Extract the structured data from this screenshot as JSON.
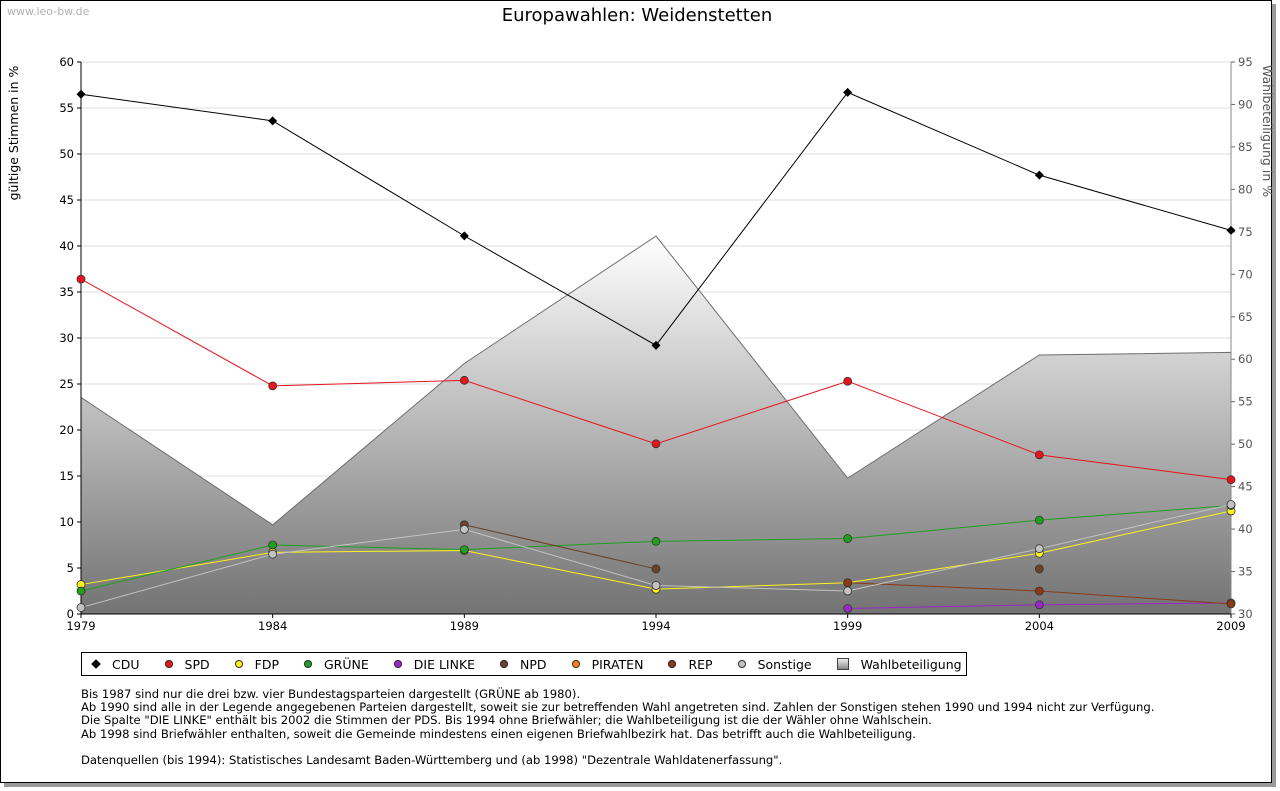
{
  "watermark": "www.leo-bw.de",
  "chart_data": {
    "type": "line",
    "title": "Europawahlen: Weidenstetten",
    "ylabel": "gültige Stimmen in %",
    "ylabel_right": "Wahlbeteiligung in %",
    "ylim": [
      0,
      60
    ],
    "ylim_right": [
      30,
      95
    ],
    "yticks": [
      0,
      5,
      10,
      15,
      20,
      25,
      30,
      35,
      40,
      45,
      50,
      55,
      60
    ],
    "yticks_right": [
      30,
      35,
      40,
      45,
      50,
      55,
      60,
      65,
      70,
      75,
      80,
      85,
      90,
      95
    ],
    "categories": [
      "1979",
      "1984",
      "1989",
      "1994",
      "1999",
      "2004",
      "2009"
    ],
    "turnout": {
      "name": "Wahlbeteiligung",
      "values": [
        55.5,
        40.5,
        59.5,
        74.5,
        46.0,
        60.5,
        60.8
      ]
    },
    "series": [
      {
        "name": "CDU",
        "color": "#000000",
        "values": [
          56.5,
          53.6,
          41.1,
          29.2,
          56.7,
          47.7,
          41.7
        ]
      },
      {
        "name": "SPD",
        "color": "#e8141c",
        "values": [
          36.4,
          24.8,
          25.4,
          18.5,
          25.3,
          17.3,
          14.6
        ]
      },
      {
        "name": "FDP",
        "color": "#fff21e",
        "values": [
          3.2,
          6.7,
          6.9,
          2.7,
          3.4,
          6.6,
          11.2
        ]
      },
      {
        "name": "GRÜNE",
        "color": "#1ea01e",
        "values": [
          2.5,
          7.5,
          7.0,
          7.9,
          8.2,
          10.2,
          11.8
        ]
      },
      {
        "name": "DIE LINKE",
        "color": "#9a28c8",
        "values": [
          null,
          null,
          null,
          null,
          0.6,
          1.0,
          1.2
        ]
      },
      {
        "name": "NPD",
        "color": "#6b4226",
        "values": [
          null,
          null,
          9.7,
          4.9,
          null,
          4.9,
          null
        ]
      },
      {
        "name": "PIRATEN",
        "color": "#ff7f1e",
        "values": [
          null,
          null,
          null,
          null,
          null,
          null,
          null
        ]
      },
      {
        "name": "REP",
        "color": "#8b3a12",
        "values": [
          null,
          null,
          null,
          null,
          3.4,
          2.5,
          1.1
        ]
      },
      {
        "name": "Sonstige",
        "color": "#c3c3c3",
        "values": [
          0.7,
          6.5,
          9.2,
          3.1,
          2.5,
          7.1,
          11.9
        ]
      }
    ]
  },
  "notes": [
    "Bis 1987 sind nur die drei bzw. vier Bundestagsparteien dargestellt (GRÜNE ab 1980).",
    "Ab 1990 sind alle in der Legende angegebenen Parteien dargestellt, soweit sie zur betreffenden Wahl angetreten sind. Zahlen der Sonstigen stehen 1990 und 1994 nicht zur Verfügung.",
    "Die Spalte \"DIE LINKE\" enthält bis 2002 die Stimmen der PDS. Bis 1994 ohne Briefwähler; die Wahlbeteiligung ist die der Wähler ohne Wahlschein.",
    "Ab 1998 sind Briefwähler enthalten, soweit die Gemeinde mindestens einen eigenen Briefwahlbezirk hat. Das betrifft auch die Wahlbeteiligung.",
    "",
    "Datenquellen (bis 1994): Statistisches Landesamt Baden-Württemberg und (ab 1998) \"Dezentrale Wahldatenerfassung\"."
  ]
}
